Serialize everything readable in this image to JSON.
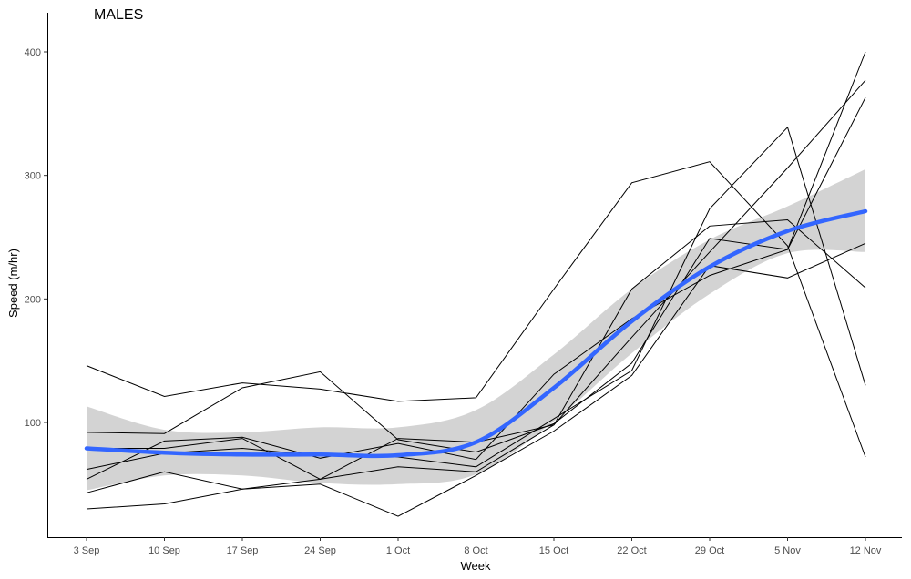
{
  "chart_data": {
    "type": "line",
    "title": "MALES",
    "xlabel": "Week",
    "ylabel": "Speed (m/hr)",
    "categories": [
      "3 Sep",
      "10 Sep",
      "17 Sep",
      "24 Sep",
      "1 Oct",
      "8 Oct",
      "15 Oct",
      "22 Oct",
      "29 Oct",
      "5 Nov",
      "12 Nov"
    ],
    "yticks": [
      100,
      200,
      300,
      400
    ],
    "ylim": [
      10,
      420
    ],
    "grid": false,
    "series": [
      {
        "values": [
          146,
          121,
          132,
          127,
          117,
          120,
          208,
          294,
          311,
          243,
          72
        ]
      },
      {
        "values": [
          92,
          91,
          128,
          141,
          86,
          76,
          99,
          148,
          249,
          240,
          363
        ]
      },
      {
        "values": [
          79,
          79,
          87,
          54,
          87,
          84,
          98,
          208,
          259,
          264,
          209
        ]
      },
      {
        "values": [
          62,
          75,
          79,
          73,
          72,
          64,
          103,
          142,
          273,
          339,
          130
        ]
      },
      {
        "values": [
          54,
          85,
          88,
          71,
          83,
          70,
          139,
          184,
          219,
          240,
          400
        ]
      },
      {
        "values": [
          43,
          60,
          46,
          54,
          64,
          60,
          98,
          169,
          238,
          306,
          377
        ]
      },
      {
        "values": [
          30,
          34,
          46,
          50,
          24,
          57,
          93,
          138,
          227,
          217,
          245
        ]
      }
    ],
    "trend": {
      "color": "#3366ff",
      "values": [
        79,
        75.5,
        74,
        74,
        73.5,
        84,
        128,
        182,
        226,
        255,
        271
      ],
      "ci_lower": [
        45,
        57,
        57,
        51,
        50,
        58,
        101,
        156,
        204,
        237,
        238
      ],
      "ci_upper": [
        113,
        94,
        92,
        96,
        96,
        110,
        155,
        208,
        248,
        275,
        305
      ]
    },
    "band_color": "#d3d3d3"
  }
}
